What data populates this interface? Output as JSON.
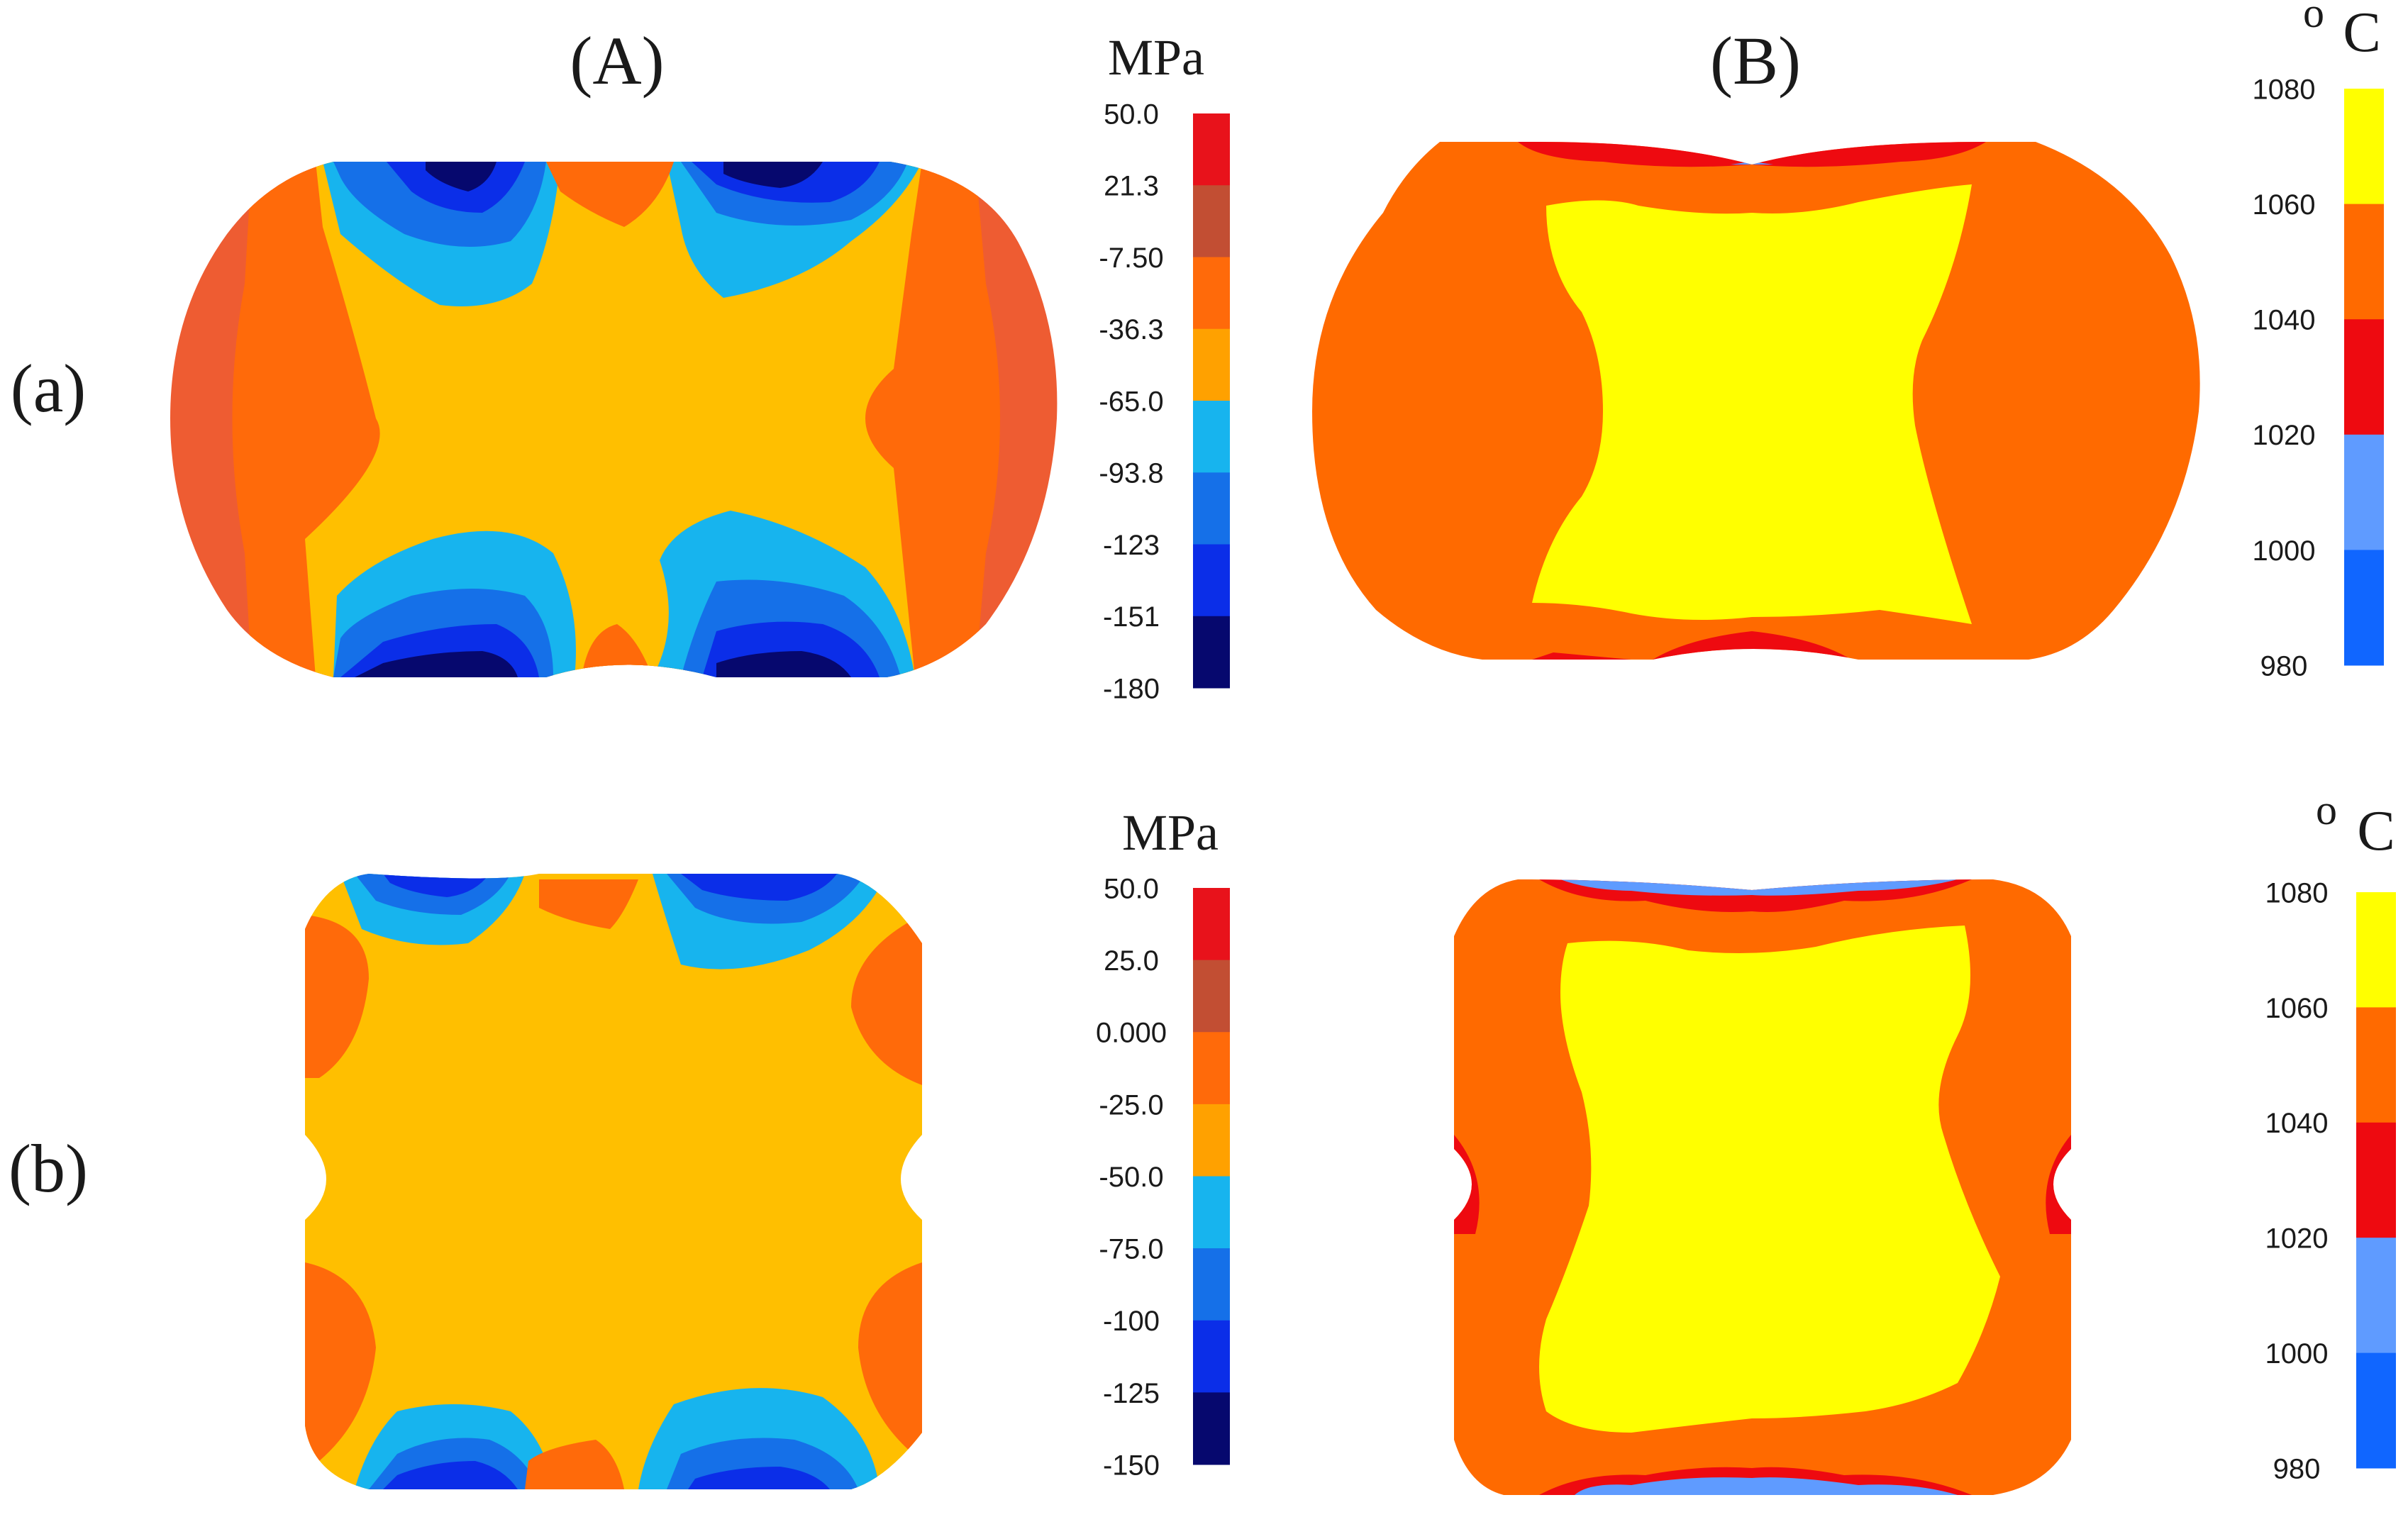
{
  "column_labels": [
    "(A)",
    "(B)"
  ],
  "row_labels": [
    "(a)",
    "(b)"
  ],
  "legends": {
    "stress_a": {
      "unit": "MPa",
      "ticks": [
        "50.0",
        "21.3",
        "-7.50",
        "-36.3",
        "-65.0",
        "-93.8",
        "-123",
        "-151",
        "-180"
      ]
    },
    "stress_b": {
      "unit": "MPa",
      "ticks": [
        "50.0",
        "25.0",
        "0.000",
        "-25.0",
        "-50.0",
        "-75.0",
        "-100",
        "-125",
        "-150"
      ]
    },
    "temp_a": {
      "unit_sup": "o",
      "unit": "C",
      "ticks": [
        "1080",
        "1060",
        "1040",
        "1020",
        "1000",
        "980"
      ]
    },
    "temp_b": {
      "unit_sup": "o",
      "unit": "C",
      "ticks": [
        "1080",
        "1060",
        "1040",
        "1020",
        "1000",
        "980"
      ]
    }
  },
  "colors": {
    "stress_bands": [
      "#e8121b",
      "#c24e33",
      "#ff6a0a",
      "#ffa100",
      "#17b4ee",
      "#1570e8",
      "#0b2ee8",
      "#06086e"
    ],
    "temp_bands": [
      "#ffff00",
      "#ff6a00",
      "#ee0a10",
      "#5f9bff",
      "#1066ff"
    ],
    "body_orange": "#ff6a00",
    "stress_body": "#ffbf00",
    "stress_edge": "#ee5c32"
  }
}
